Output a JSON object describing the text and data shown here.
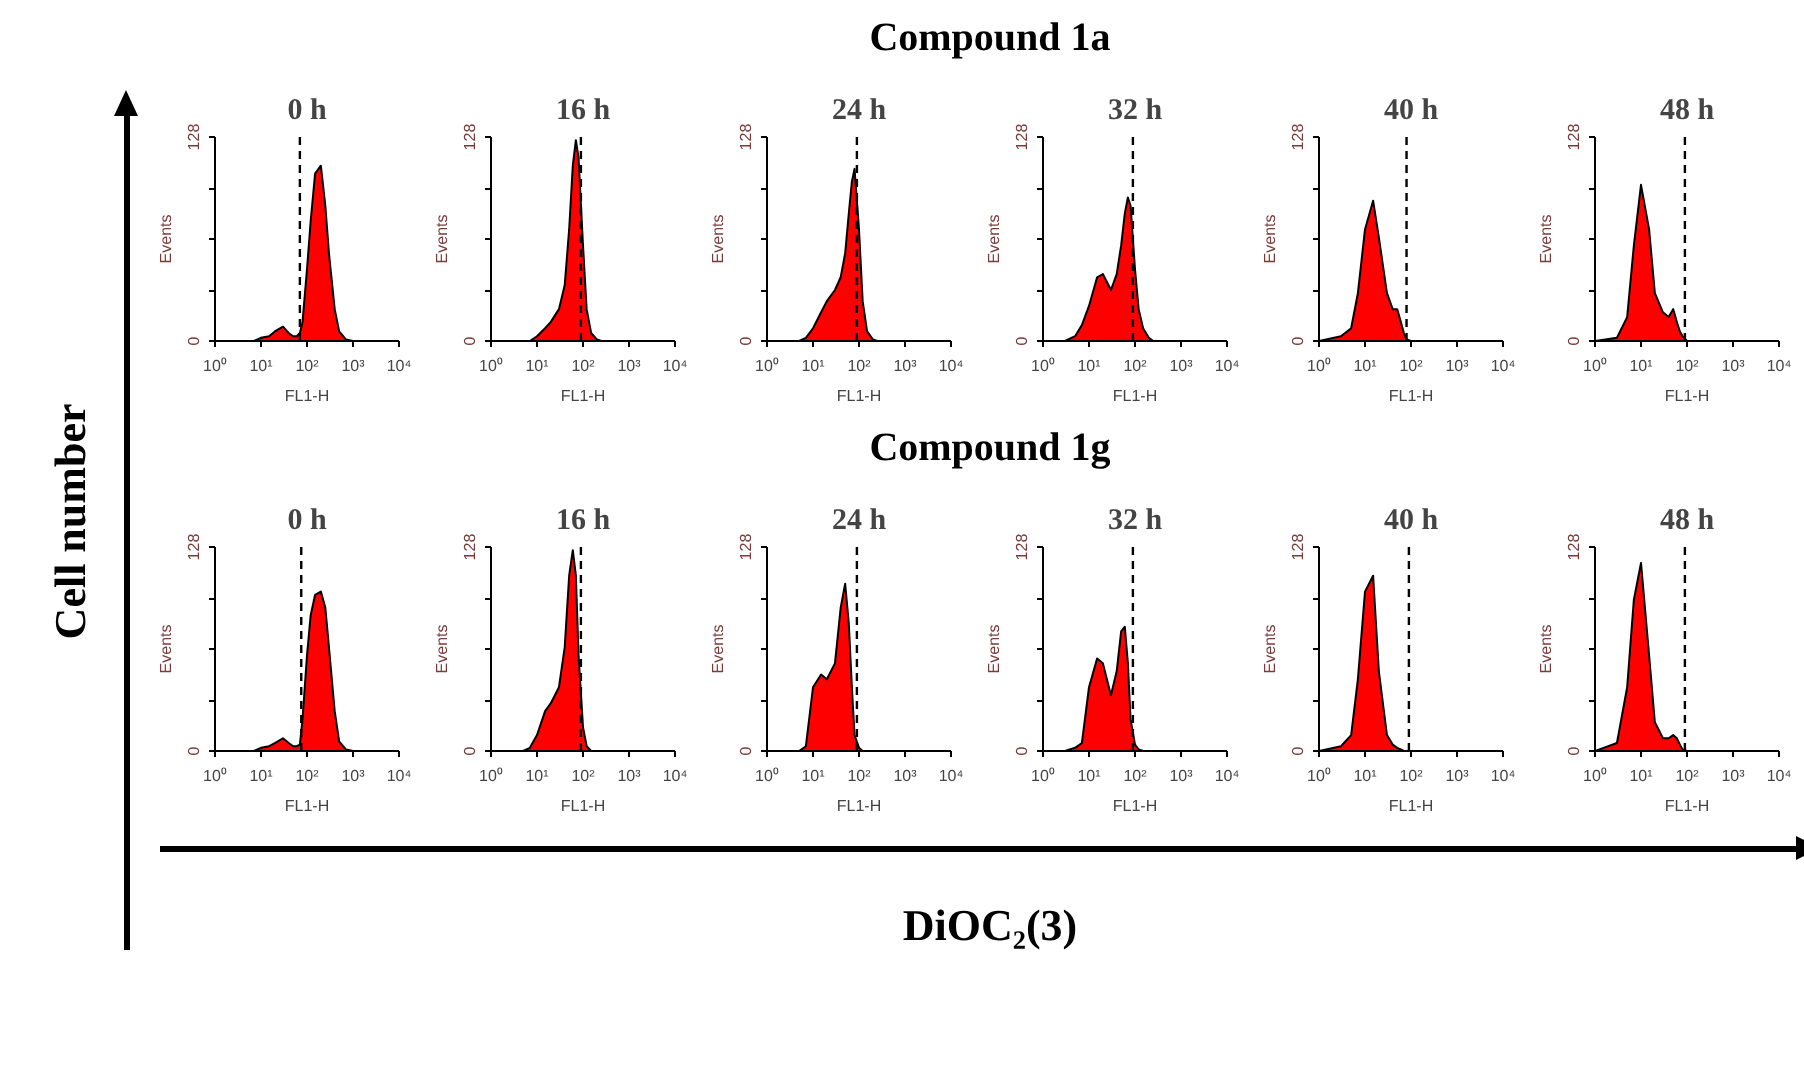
{
  "chart_data": [
    {
      "type": "area",
      "title": "0 h",
      "xlabel": "FL1-H",
      "ylabel": "Events",
      "log": "x",
      "xlim": [
        1,
        10000
      ],
      "xticks": [
        {
          "value": 1,
          "label": "10⁰"
        },
        {
          "value": 10,
          "label": "10¹"
        },
        {
          "value": 100,
          "label": "10²"
        },
        {
          "value": 1000,
          "label": "10³"
        },
        {
          "value": 10000,
          "label": "10⁴"
        }
      ],
      "ylim": [
        0,
        128
      ],
      "yticks": [
        0,
        {
          "value": 32,
          "label": null
        },
        {
          "value": 64,
          "label": null
        },
        {
          "value": 96,
          "label": null
        },
        128
      ],
      "ref_lines": [
        {
          "axis": "x",
          "value": 70,
          "line_style": "dashed"
        }
      ],
      "x": [
        1,
        3,
        5,
        7,
        10,
        15,
        20,
        30,
        40,
        50,
        60,
        70,
        80,
        100,
        120,
        150,
        200,
        250,
        300,
        400,
        500,
        700,
        1000,
        10000
      ],
      "series": [
        {
          "color": "#ff0000",
          "values": [
            0,
            0,
            0,
            0,
            2,
            3,
            6,
            9,
            5,
            3,
            3,
            5,
            12,
            45,
            75,
            105,
            110,
            85,
            55,
            20,
            6,
            1,
            0,
            0
          ]
        }
      ]
    },
    {
      "type": "area",
      "title": "16 h",
      "xlabel": "FL1-H",
      "ylabel": "Events",
      "log": "x",
      "xlim": [
        1,
        10000
      ],
      "xticks": [
        {
          "value": 1,
          "label": "10⁰"
        },
        {
          "value": 10,
          "label": "10¹"
        },
        {
          "value": 100,
          "label": "10²"
        },
        {
          "value": 1000,
          "label": "10³"
        },
        {
          "value": 10000,
          "label": "10⁴"
        }
      ],
      "ylim": [
        0,
        128
      ],
      "yticks": [
        0,
        {
          "value": 32,
          "label": null
        },
        {
          "value": 64,
          "label": null
        },
        {
          "value": 96,
          "label": null
        },
        128
      ],
      "ref_lines": [
        {
          "axis": "x",
          "value": 90,
          "line_style": "dashed"
        }
      ],
      "x": [
        1,
        3,
        5,
        7,
        10,
        15,
        20,
        30,
        40,
        50,
        60,
        70,
        80,
        100,
        120,
        150,
        200,
        250,
        300,
        400,
        500,
        700,
        1000,
        10000
      ],
      "series": [
        {
          "color": "#ff0000",
          "values": [
            0,
            0,
            0,
            0,
            3,
            8,
            12,
            20,
            35,
            70,
            110,
            126,
            115,
            60,
            20,
            5,
            1,
            0,
            0,
            0,
            0,
            0,
            0,
            0
          ]
        }
      ]
    },
    {
      "type": "area",
      "title": "24 h",
      "xlabel": "FL1-H",
      "ylabel": "Events",
      "log": "x",
      "xlim": [
        1,
        10000
      ],
      "xticks": [
        {
          "value": 1,
          "label": "10⁰"
        },
        {
          "value": 10,
          "label": "10¹"
        },
        {
          "value": 100,
          "label": "10²"
        },
        {
          "value": 1000,
          "label": "10³"
        },
        {
          "value": 10000,
          "label": "10⁴"
        }
      ],
      "ylim": [
        0,
        128
      ],
      "yticks": [
        0,
        {
          "value": 32,
          "label": null
        },
        {
          "value": 64,
          "label": null
        },
        {
          "value": 96,
          "label": null
        },
        128
      ],
      "ref_lines": [
        {
          "axis": "x",
          "value": 90,
          "line_style": "dashed"
        }
      ],
      "x": [
        1,
        3,
        5,
        7,
        10,
        15,
        20,
        30,
        40,
        50,
        60,
        70,
        80,
        100,
        120,
        150,
        200,
        250,
        300,
        400,
        500,
        700,
        1000,
        10000
      ],
      "series": [
        {
          "color": "#ff0000",
          "values": [
            0,
            0,
            0,
            2,
            8,
            18,
            25,
            32,
            40,
            55,
            80,
            100,
            108,
            70,
            25,
            6,
            1,
            0,
            0,
            0,
            0,
            0,
            0,
            0
          ]
        }
      ]
    },
    {
      "type": "area",
      "title": "32 h",
      "xlabel": "FL1-H",
      "ylabel": "Events",
      "log": "x",
      "xlim": [
        1,
        10000
      ],
      "xticks": [
        {
          "value": 1,
          "label": "10⁰"
        },
        {
          "value": 10,
          "label": "10¹"
        },
        {
          "value": 100,
          "label": "10²"
        },
        {
          "value": 1000,
          "label": "10³"
        },
        {
          "value": 10000,
          "label": "10⁴"
        }
      ],
      "ylim": [
        0,
        128
      ],
      "yticks": [
        0,
        {
          "value": 32,
          "label": null
        },
        {
          "value": 64,
          "label": null
        },
        {
          "value": 96,
          "label": null
        },
        128
      ],
      "ref_lines": [
        {
          "axis": "x",
          "value": 90,
          "line_style": "dashed"
        }
      ],
      "x": [
        1,
        3,
        5,
        7,
        10,
        15,
        20,
        30,
        40,
        50,
        60,
        70,
        80,
        100,
        120,
        150,
        200,
        250,
        300,
        400,
        500,
        700,
        1000,
        10000
      ],
      "series": [
        {
          "color": "#ff0000",
          "values": [
            0,
            0,
            3,
            10,
            22,
            40,
            42,
            32,
            42,
            60,
            80,
            90,
            85,
            45,
            20,
            8,
            2,
            0,
            0,
            0,
            0,
            0,
            0,
            0
          ]
        }
      ]
    },
    {
      "type": "area",
      "title": "40 h",
      "xlabel": "FL1-H",
      "ylabel": "Events",
      "log": "x",
      "xlim": [
        1,
        10000
      ],
      "xticks": [
        {
          "value": 1,
          "label": "10⁰"
        },
        {
          "value": 10,
          "label": "10¹"
        },
        {
          "value": 100,
          "label": "10²"
        },
        {
          "value": 1000,
          "label": "10³"
        },
        {
          "value": 10000,
          "label": "10⁴"
        }
      ],
      "ylim": [
        0,
        128
      ],
      "yticks": [
        0,
        {
          "value": 32,
          "label": null
        },
        {
          "value": 64,
          "label": null
        },
        {
          "value": 96,
          "label": null
        },
        128
      ],
      "ref_lines": [
        {
          "axis": "x",
          "value": 80,
          "line_style": "dashed"
        }
      ],
      "x": [
        1,
        3,
        5,
        7,
        10,
        15,
        20,
        30,
        40,
        50,
        60,
        70,
        80,
        100,
        120,
        150,
        200,
        250,
        300,
        400,
        500,
        700,
        1000,
        10000
      ],
      "series": [
        {
          "color": "#ff0000",
          "values": [
            0,
            3,
            8,
            30,
            70,
            88,
            65,
            30,
            20,
            20,
            12,
            5,
            1,
            0,
            0,
            0,
            0,
            0,
            0,
            0,
            0,
            0,
            0,
            0
          ]
        }
      ]
    },
    {
      "type": "area",
      "title": "48 h",
      "xlabel": "FL1-H",
      "ylabel": "Events",
      "log": "x",
      "xlim": [
        1,
        10000
      ],
      "xticks": [
        {
          "value": 1,
          "label": "10⁰"
        },
        {
          "value": 10,
          "label": "10¹"
        },
        {
          "value": 100,
          "label": "10²"
        },
        {
          "value": 1000,
          "label": "10³"
        },
        {
          "value": 10000,
          "label": "10⁴"
        }
      ],
      "ylim": [
        0,
        128
      ],
      "yticks": [
        0,
        {
          "value": 32,
          "label": null
        },
        {
          "value": 64,
          "label": null
        },
        {
          "value": 96,
          "label": null
        },
        128
      ],
      "ref_lines": [
        {
          "axis": "x",
          "value": 90,
          "line_style": "dashed"
        }
      ],
      "x": [
        1,
        3,
        5,
        7,
        10,
        15,
        20,
        30,
        40,
        50,
        60,
        70,
        80,
        100,
        120,
        150,
        200,
        250,
        300,
        400,
        500,
        700,
        1000,
        10000
      ],
      "series": [
        {
          "color": "#ff0000",
          "values": [
            0,
            2,
            15,
            60,
            98,
            70,
            30,
            18,
            15,
            20,
            12,
            6,
            3,
            0,
            0,
            0,
            0,
            0,
            0,
            0,
            0,
            0,
            0,
            0
          ]
        }
      ]
    },
    {
      "type": "area",
      "title": "0 h",
      "xlabel": "FL1-H",
      "ylabel": "Events",
      "log": "x",
      "xlim": [
        1,
        10000
      ],
      "xticks": [
        {
          "value": 1,
          "label": "10⁰"
        },
        {
          "value": 10,
          "label": "10¹"
        },
        {
          "value": 100,
          "label": "10²"
        },
        {
          "value": 1000,
          "label": "10³"
        },
        {
          "value": 10000,
          "label": "10⁴"
        }
      ],
      "ylim": [
        0,
        128
      ],
      "yticks": [
        0,
        {
          "value": 32,
          "label": null
        },
        {
          "value": 64,
          "label": null
        },
        {
          "value": 96,
          "label": null
        },
        128
      ],
      "ref_lines": [
        {
          "axis": "x",
          "value": 75,
          "line_style": "dashed"
        }
      ],
      "x": [
        1,
        3,
        5,
        7,
        10,
        15,
        20,
        30,
        40,
        50,
        60,
        70,
        80,
        100,
        120,
        150,
        200,
        250,
        300,
        400,
        500,
        700,
        1000,
        10000
      ],
      "series": [
        {
          "color": "#ff0000",
          "values": [
            0,
            0,
            0,
            0,
            2,
            3,
            5,
            8,
            5,
            3,
            3,
            4,
            20,
            60,
            85,
            98,
            100,
            90,
            65,
            25,
            6,
            1,
            0,
            0
          ]
        }
      ]
    },
    {
      "type": "area",
      "title": "16 h",
      "xlabel": "FL1-H",
      "ylabel": "Events",
      "log": "x",
      "xlim": [
        1,
        10000
      ],
      "xticks": [
        {
          "value": 1,
          "label": "10⁰"
        },
        {
          "value": 10,
          "label": "10¹"
        },
        {
          "value": 100,
          "label": "10²"
        },
        {
          "value": 1000,
          "label": "10³"
        },
        {
          "value": 10000,
          "label": "10⁴"
        }
      ],
      "ylim": [
        0,
        128
      ],
      "yticks": [
        0,
        {
          "value": 32,
          "label": null
        },
        {
          "value": 64,
          "label": null
        },
        {
          "value": 96,
          "label": null
        },
        128
      ],
      "ref_lines": [
        {
          "axis": "x",
          "value": 90,
          "line_style": "dashed"
        }
      ],
      "x": [
        1,
        3,
        5,
        7,
        10,
        15,
        20,
        30,
        40,
        50,
        60,
        70,
        80,
        100,
        120,
        150,
        200,
        250,
        300,
        400,
        500,
        700,
        1000,
        10000
      ],
      "series": [
        {
          "color": "#ff0000",
          "values": [
            0,
            0,
            0,
            2,
            10,
            25,
            30,
            40,
            65,
            110,
            126,
            110,
            60,
            15,
            3,
            0,
            0,
            0,
            0,
            0,
            0,
            0,
            0,
            0
          ]
        }
      ]
    },
    {
      "type": "area",
      "title": "24 h",
      "xlabel": "FL1-H",
      "ylabel": "Events",
      "log": "x",
      "xlim": [
        1,
        10000
      ],
      "xticks": [
        {
          "value": 1,
          "label": "10⁰"
        },
        {
          "value": 10,
          "label": "10¹"
        },
        {
          "value": 100,
          "label": "10²"
        },
        {
          "value": 1000,
          "label": "10³"
        },
        {
          "value": 10000,
          "label": "10⁴"
        }
      ],
      "ylim": [
        0,
        128
      ],
      "yticks": [
        0,
        {
          "value": 32,
          "label": null
        },
        {
          "value": 64,
          "label": null
        },
        {
          "value": 96,
          "label": null
        },
        128
      ],
      "ref_lines": [
        {
          "axis": "x",
          "value": 90,
          "line_style": "dashed"
        }
      ],
      "x": [
        1,
        3,
        5,
        7,
        10,
        15,
        20,
        30,
        40,
        50,
        60,
        70,
        80,
        100,
        120,
        150,
        200,
        250,
        300,
        400,
        500,
        700,
        1000,
        10000
      ],
      "series": [
        {
          "color": "#ff0000",
          "values": [
            0,
            0,
            0,
            3,
            40,
            48,
            45,
            55,
            90,
            105,
            80,
            40,
            10,
            2,
            0,
            0,
            0,
            0,
            0,
            0,
            0,
            0,
            0,
            0
          ]
        }
      ]
    },
    {
      "type": "area",
      "title": "32 h",
      "xlabel": "FL1-H",
      "ylabel": "Events",
      "log": "x",
      "xlim": [
        1,
        10000
      ],
      "xticks": [
        {
          "value": 1,
          "label": "10⁰"
        },
        {
          "value": 10,
          "label": "10¹"
        },
        {
          "value": 100,
          "label": "10²"
        },
        {
          "value": 1000,
          "label": "10³"
        },
        {
          "value": 10000,
          "label": "10⁴"
        }
      ],
      "ylim": [
        0,
        128
      ],
      "yticks": [
        0,
        {
          "value": 32,
          "label": null
        },
        {
          "value": 64,
          "label": null
        },
        {
          "value": 96,
          "label": null
        },
        128
      ],
      "ref_lines": [
        {
          "axis": "x",
          "value": 90,
          "line_style": "dashed"
        }
      ],
      "x": [
        1,
        3,
        5,
        7,
        10,
        15,
        20,
        30,
        40,
        50,
        60,
        70,
        80,
        100,
        120,
        150,
        200,
        250,
        300,
        400,
        500,
        700,
        1000,
        10000
      ],
      "series": [
        {
          "color": "#ff0000",
          "values": [
            0,
            0,
            2,
            5,
            40,
            58,
            55,
            35,
            50,
            75,
            78,
            55,
            20,
            4,
            1,
            0,
            0,
            0,
            0,
            0,
            0,
            0,
            0,
            0
          ]
        }
      ]
    },
    {
      "type": "area",
      "title": "40 h",
      "xlabel": "FL1-H",
      "ylabel": "Events",
      "log": "x",
      "xlim": [
        1,
        10000
      ],
      "xticks": [
        {
          "value": 1,
          "label": "10⁰"
        },
        {
          "value": 10,
          "label": "10¹"
        },
        {
          "value": 100,
          "label": "10²"
        },
        {
          "value": 1000,
          "label": "10³"
        },
        {
          "value": 10000,
          "label": "10⁴"
        }
      ],
      "ylim": [
        0,
        128
      ],
      "yticks": [
        0,
        {
          "value": 32,
          "label": null
        },
        {
          "value": 64,
          "label": null
        },
        {
          "value": 96,
          "label": null
        },
        128
      ],
      "ref_lines": [
        {
          "axis": "x",
          "value": 90,
          "line_style": "dashed"
        }
      ],
      "x": [
        1,
        3,
        5,
        7,
        10,
        15,
        20,
        30,
        40,
        50,
        60,
        70,
        80,
        100,
        120,
        150,
        200,
        250,
        300,
        400,
        500,
        700,
        1000,
        10000
      ],
      "series": [
        {
          "color": "#ff0000",
          "values": [
            0,
            3,
            10,
            45,
            100,
            110,
            50,
            10,
            4,
            2,
            1,
            0,
            0,
            0,
            0,
            0,
            0,
            0,
            0,
            0,
            0,
            0,
            0,
            0
          ]
        }
      ]
    },
    {
      "type": "area",
      "title": "48 h",
      "xlabel": "FL1-H",
      "ylabel": "Events",
      "log": "x",
      "xlim": [
        1,
        10000
      ],
      "xticks": [
        {
          "value": 1,
          "label": "10⁰"
        },
        {
          "value": 10,
          "label": "10¹"
        },
        {
          "value": 100,
          "label": "10²"
        },
        {
          "value": 1000,
          "label": "10³"
        },
        {
          "value": 10000,
          "label": "10⁴"
        }
      ],
      "ylim": [
        0,
        128
      ],
      "yticks": [
        0,
        {
          "value": 32,
          "label": null
        },
        {
          "value": 64,
          "label": null
        },
        {
          "value": 96,
          "label": null
        },
        128
      ],
      "ref_lines": [
        {
          "axis": "x",
          "value": 90,
          "line_style": "dashed"
        }
      ],
      "x": [
        1,
        3,
        5,
        7,
        10,
        15,
        20,
        30,
        40,
        50,
        60,
        70,
        80,
        100,
        120,
        150,
        200,
        250,
        300,
        400,
        500,
        700,
        1000,
        10000
      ],
      "series": [
        {
          "color": "#ff0000",
          "values": [
            0,
            5,
            40,
            95,
            118,
            60,
            18,
            8,
            8,
            10,
            8,
            4,
            1,
            0,
            0,
            0,
            0,
            0,
            0,
            0,
            0,
            0,
            0,
            0
          ]
        }
      ]
    },
    {
      "type": "other",
      "annotations": [
        "Compound 1a",
        "Compound 1g"
      ],
      "ylabel": "Cell number",
      "xlabel": "DiOC₂(3)"
    }
  ]
}
